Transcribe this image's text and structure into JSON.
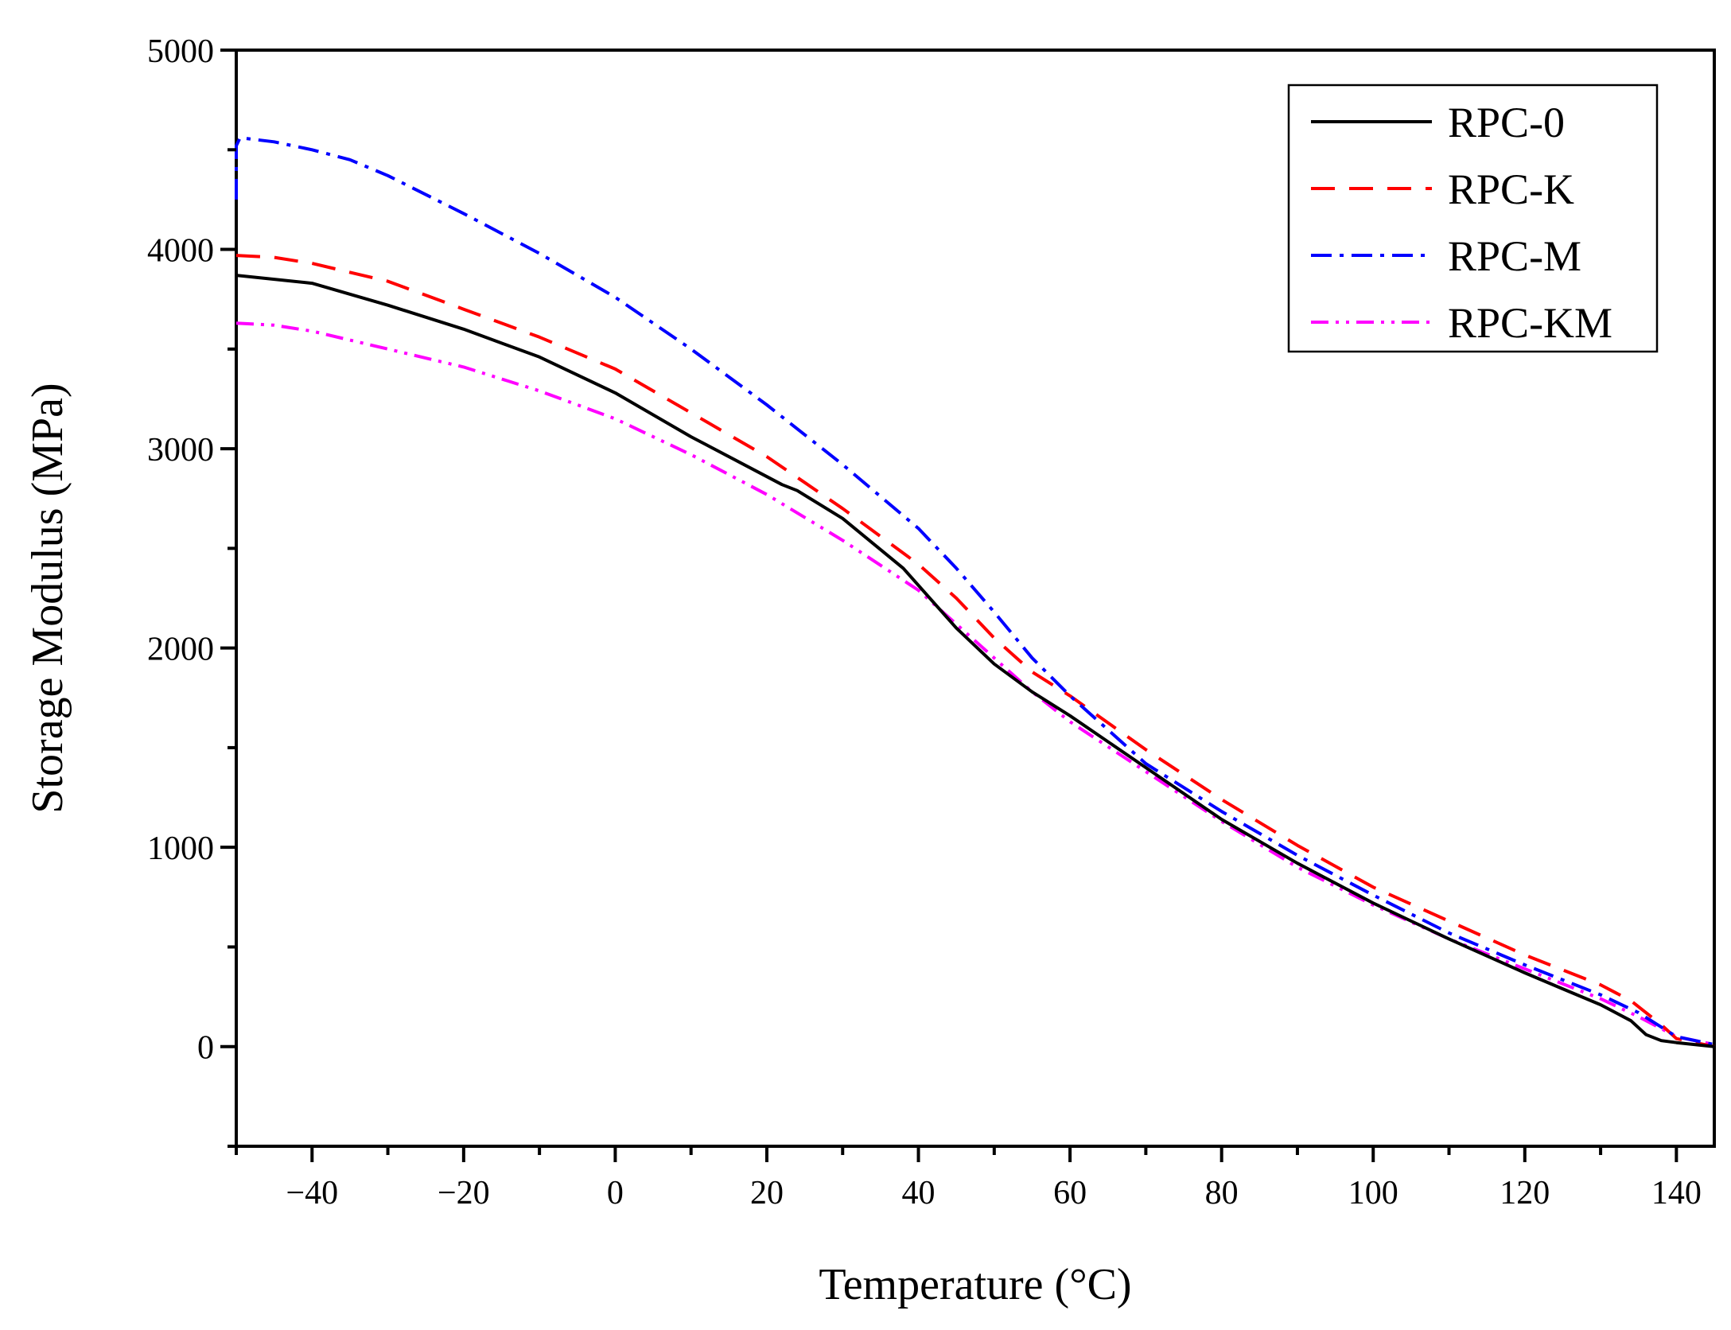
{
  "chart_data": {
    "type": "line",
    "title": "",
    "xlabel": "Temperature (°C)",
    "ylabel": "Storage Modulus (MPa)",
    "xlim": [
      -50,
      145
    ],
    "ylim": [
      -500,
      5000
    ],
    "x_ticks": [
      -40,
      -20,
      0,
      20,
      40,
      60,
      80,
      100,
      120,
      140
    ],
    "y_ticks": [
      0,
      1000,
      2000,
      3000,
      4000,
      5000
    ],
    "grid": false,
    "legend_position": "top-right",
    "series": [
      {
        "name": "RPC-0",
        "color": "#000000",
        "style": "solid",
        "x": [
          -50,
          -40,
          -30,
          -20,
          -10,
          0,
          10,
          20,
          22,
          24,
          30,
          38,
          45,
          50,
          55,
          60,
          70,
          80,
          90,
          100,
          110,
          120,
          125,
          130,
          132,
          134,
          136,
          138,
          140,
          145
        ],
        "y": [
          3870,
          3830,
          3720,
          3600,
          3460,
          3280,
          3060,
          2860,
          2820,
          2790,
          2650,
          2400,
          2100,
          1920,
          1780,
          1660,
          1400,
          1140,
          920,
          720,
          540,
          370,
          290,
          210,
          170,
          130,
          60,
          30,
          20,
          0
        ]
      },
      {
        "name": "RPC-K",
        "color": "#ff0000",
        "style": "dashed",
        "x": [
          -50,
          -45,
          -40,
          -30,
          -20,
          -10,
          0,
          10,
          20,
          30,
          40,
          45,
          50,
          55,
          60,
          70,
          80,
          90,
          100,
          110,
          120,
          130,
          134,
          136,
          138,
          140,
          145
        ],
        "y": [
          3970,
          3960,
          3930,
          3840,
          3700,
          3560,
          3400,
          3180,
          2960,
          2700,
          2420,
          2250,
          2050,
          1880,
          1760,
          1490,
          1240,
          1010,
          800,
          630,
          460,
          310,
          230,
          170,
          110,
          40,
          0
        ]
      },
      {
        "name": "RPC-M",
        "color": "#0000ff",
        "style": "dash-dot",
        "x": [
          -50,
          -50,
          -49.5,
          -45,
          -40,
          -35,
          -30,
          -20,
          -10,
          0,
          10,
          20,
          30,
          40,
          45,
          50,
          55,
          60,
          70,
          80,
          90,
          100,
          110,
          120,
          130,
          135,
          140,
          145
        ],
        "y": [
          4250,
          4520,
          4560,
          4540,
          4500,
          4450,
          4370,
          4180,
          3980,
          3760,
          3500,
          3220,
          2920,
          2600,
          2400,
          2180,
          1950,
          1760,
          1420,
          1180,
          960,
          760,
          570,
          410,
          260,
          170,
          50,
          10
        ]
      },
      {
        "name": "RPC-KM",
        "color": "#ff00ff",
        "style": "dash-dot-dot",
        "x": [
          -50,
          -45,
          -40,
          -30,
          -20,
          -10,
          0,
          10,
          20,
          30,
          40,
          45,
          50,
          55,
          60,
          70,
          80,
          90,
          100,
          110,
          120,
          130,
          135,
          140,
          145
        ],
        "y": [
          3630,
          3620,
          3590,
          3500,
          3410,
          3290,
          3150,
          2970,
          2770,
          2540,
          2290,
          2120,
          1950,
          1780,
          1630,
          1380,
          1130,
          900,
          710,
          540,
          390,
          240,
          150,
          50,
          10
        ]
      }
    ]
  }
}
